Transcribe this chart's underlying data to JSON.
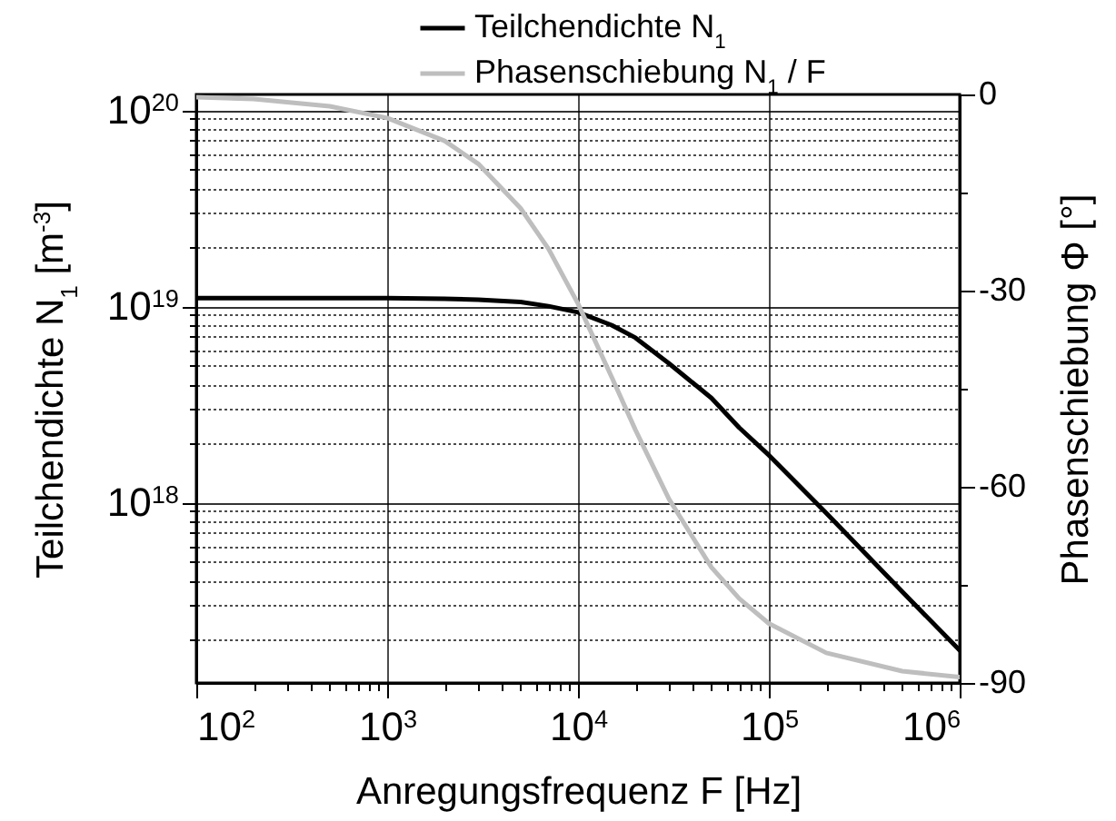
{
  "chart_data": {
    "type": "line",
    "xlabel": "Anregungsfrequenz F [Hz]",
    "ylabel": "Teilchendichte N$_{1}$ [m$^{-3}$]",
    "y2label": "Phasenschiebung Φ [°]",
    "x": [
      100,
      200,
      500,
      1000,
      2000,
      3000,
      5000,
      7000,
      10000,
      15000,
      20000,
      30000,
      50000,
      70000,
      100000,
      200000,
      500000,
      1000000
    ],
    "series": [
      {
        "name": "Teilchendichte N$_{1}$",
        "color": "#000000",
        "values": [
          1.1e+19,
          1.1e+19,
          1.1e+19,
          1.1e+19,
          1.09e+19,
          1.08e+19,
          1.05e+19,
          1e+19,
          9.3e+18,
          8e+18,
          6.9e+18,
          5.1e+18,
          3.4e+18,
          2.4e+18,
          1.74e+18,
          8.8e+17,
          3.5e+17,
          1.76e+17
        ]
      },
      {
        "name": "Phasenschiebung N$_{1}$ / F",
        "color": "#bebebe",
        "axis": "y2",
        "values": [
          -0.4,
          -0.7,
          -1.8,
          -3.6,
          -7.1,
          -10.6,
          -17.4,
          -23.6,
          -32,
          -43.2,
          -51.3,
          -61.9,
          -72.3,
          -77.1,
          -80.9,
          -85.4,
          -88.2,
          -89.1
        ]
      }
    ],
    "log": "xy",
    "xlim": [
      100,
      1000000
    ],
    "xticks": [
      {
        "value": 100,
        "label": "10$^{2}$"
      },
      {
        "value": 200,
        "label": null
      },
      {
        "value": 300,
        "label": null
      },
      {
        "value": 400,
        "label": null
      },
      {
        "value": 500,
        "label": null
      },
      {
        "value": 600,
        "label": null
      },
      {
        "value": 700,
        "label": null
      },
      {
        "value": 800,
        "label": null
      },
      {
        "value": 900,
        "label": null
      },
      {
        "value": 1000,
        "label": "10$^{3}$"
      },
      {
        "value": 2000,
        "label": null
      },
      {
        "value": 3000,
        "label": null
      },
      {
        "value": 4000,
        "label": null
      },
      {
        "value": 5000,
        "label": null
      },
      {
        "value": 6000,
        "label": null
      },
      {
        "value": 7000,
        "label": null
      },
      {
        "value": 8000,
        "label": null
      },
      {
        "value": 9000,
        "label": null
      },
      {
        "value": 10000,
        "label": "10$^{4}$"
      },
      {
        "value": 20000,
        "label": null
      },
      {
        "value": 30000,
        "label": null
      },
      {
        "value": 40000,
        "label": null
      },
      {
        "value": 50000,
        "label": null
      },
      {
        "value": 60000,
        "label": null
      },
      {
        "value": 70000,
        "label": null
      },
      {
        "value": 80000,
        "label": null
      },
      {
        "value": 90000,
        "label": null
      },
      {
        "value": 100000,
        "label": "10$^{5}$"
      },
      {
        "value": 200000,
        "label": null
      },
      {
        "value": 300000,
        "label": null
      },
      {
        "value": 400000,
        "label": null
      },
      {
        "value": 500000,
        "label": null
      },
      {
        "value": 600000,
        "label": null
      },
      {
        "value": 700000,
        "label": null
      },
      {
        "value": 800000,
        "label": null
      },
      {
        "value": 900000,
        "label": null
      },
      {
        "value": 1000000,
        "label": "10$^{6}$"
      }
    ],
    "ylim": [
      1.2e+17,
      1.2e+20
    ],
    "yticks": [
      {
        "value": 2e+17,
        "label": null
      },
      {
        "value": 3e+17,
        "label": null
      },
      {
        "value": 4e+17,
        "label": null
      },
      {
        "value": 5e+17,
        "label": null
      },
      {
        "value": 6e+17,
        "label": null
      },
      {
        "value": 7e+17,
        "label": null
      },
      {
        "value": 8e+17,
        "label": null
      },
      {
        "value": 9e+17,
        "label": null
      },
      {
        "value": 1e+18,
        "label": "10$^{18}$"
      },
      {
        "value": 2e+18,
        "label": null
      },
      {
        "value": 3e+18,
        "label": null
      },
      {
        "value": 4e+18,
        "label": null
      },
      {
        "value": 5e+18,
        "label": null
      },
      {
        "value": 6e+18,
        "label": null
      },
      {
        "value": 7e+18,
        "label": null
      },
      {
        "value": 8e+18,
        "label": null
      },
      {
        "value": 9e+18,
        "label": null
      },
      {
        "value": 1e+19,
        "label": "10$^{19}$"
      },
      {
        "value": 2e+19,
        "label": null
      },
      {
        "value": 3e+19,
        "label": null
      },
      {
        "value": 4e+19,
        "label": null
      },
      {
        "value": 5e+19,
        "label": null
      },
      {
        "value": 6e+19,
        "label": null
      },
      {
        "value": 7e+19,
        "label": null
      },
      {
        "value": 8e+19,
        "label": null
      },
      {
        "value": 9e+19,
        "label": null
      },
      {
        "value": 1e+20,
        "label": "10$^{20}$"
      }
    ],
    "y2lim": [
      -90,
      0
    ],
    "y2ticks": [
      -90,
      {
        "value": -75,
        "label": null
      },
      -60,
      {
        "value": -45,
        "label": null
      },
      -30,
      {
        "value": -15,
        "label": null
      },
      0
    ],
    "grid": true,
    "legend": "top right",
    "line_style": "solid",
    "marker": "none"
  }
}
